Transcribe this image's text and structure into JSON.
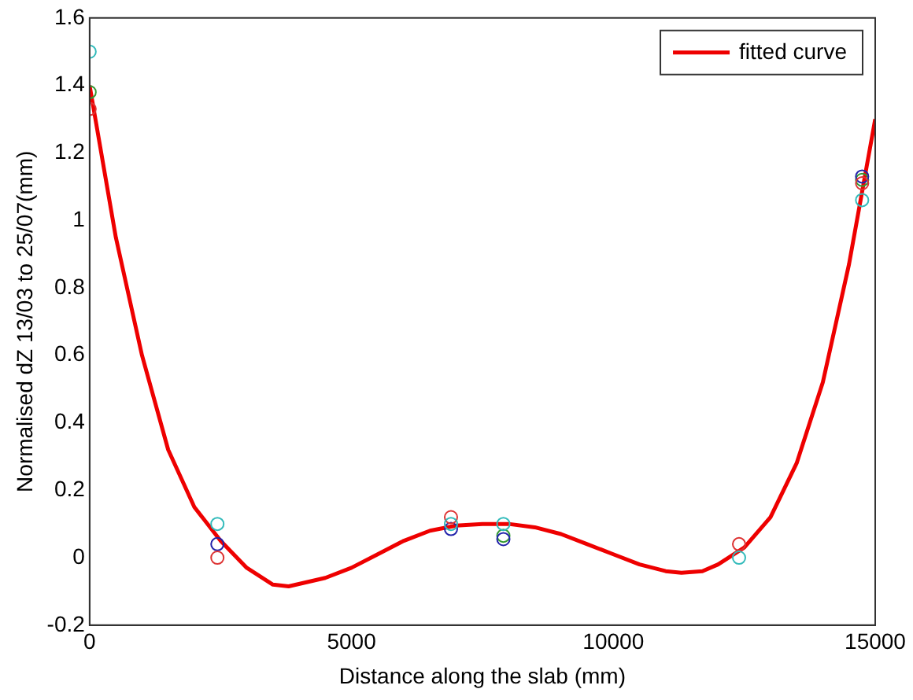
{
  "chart_data": {
    "type": "scatter",
    "xlabel": "Distance along the slab (mm)",
    "ylabel": "Normalised dZ 13/03 to 25/07(mm)",
    "xlim": [
      0,
      15000
    ],
    "xticks": [
      0,
      5000,
      10000,
      15000
    ],
    "ylim": [
      -0.2,
      1.6
    ],
    "yticks": [
      -0.2,
      0,
      0.2,
      0.4,
      0.6,
      0.8,
      1,
      1.2,
      1.4,
      1.6
    ],
    "grid": false,
    "legend": "top right",
    "marker": "circle",
    "series": [
      {
        "color": "#33bbbb",
        "x": [
          0,
          2440,
          6900,
          7900,
          12400,
          14750
        ],
        "values": [
          1.5,
          0.1,
          0.1,
          0.1,
          0.0,
          1.06
        ]
      },
      {
        "color": "#dd3333",
        "x": [
          0,
          2440,
          6900,
          12400,
          14750
        ],
        "values": [
          1.33,
          0.0,
          0.12,
          0.04,
          1.11
        ]
      },
      {
        "color": "#2222aa",
        "x": [
          2440,
          6900,
          7900,
          14750
        ],
        "values": [
          0.04,
          0.085,
          0.055,
          1.13
        ]
      },
      {
        "color": "#339933",
        "x": [
          0,
          7900,
          14750
        ],
        "values": [
          1.38,
          0.065,
          1.12
        ]
      },
      {
        "type": "line",
        "name": "fitted curve",
        "color": "#ee0000",
        "marker": "none",
        "line_style": "solid",
        "x": [
          0,
          500,
          1000,
          1500,
          2000,
          2500,
          3000,
          3500,
          3800,
          4500,
          5000,
          5500,
          6000,
          6500,
          7000,
          7500,
          8000,
          8500,
          9000,
          9500,
          10000,
          10500,
          11000,
          11300,
          11700,
          12000,
          12500,
          13000,
          13500,
          14000,
          14500,
          15000
        ],
        "values": [
          1.4,
          0.95,
          0.6,
          0.32,
          0.15,
          0.05,
          -0.03,
          -0.08,
          -0.085,
          -0.06,
          -0.03,
          0.01,
          0.05,
          0.08,
          0.095,
          0.1,
          0.1,
          0.09,
          0.07,
          0.04,
          0.01,
          -0.02,
          -0.04,
          -0.045,
          -0.04,
          -0.02,
          0.03,
          0.12,
          0.28,
          0.52,
          0.87,
          1.3
        ]
      }
    ]
  }
}
